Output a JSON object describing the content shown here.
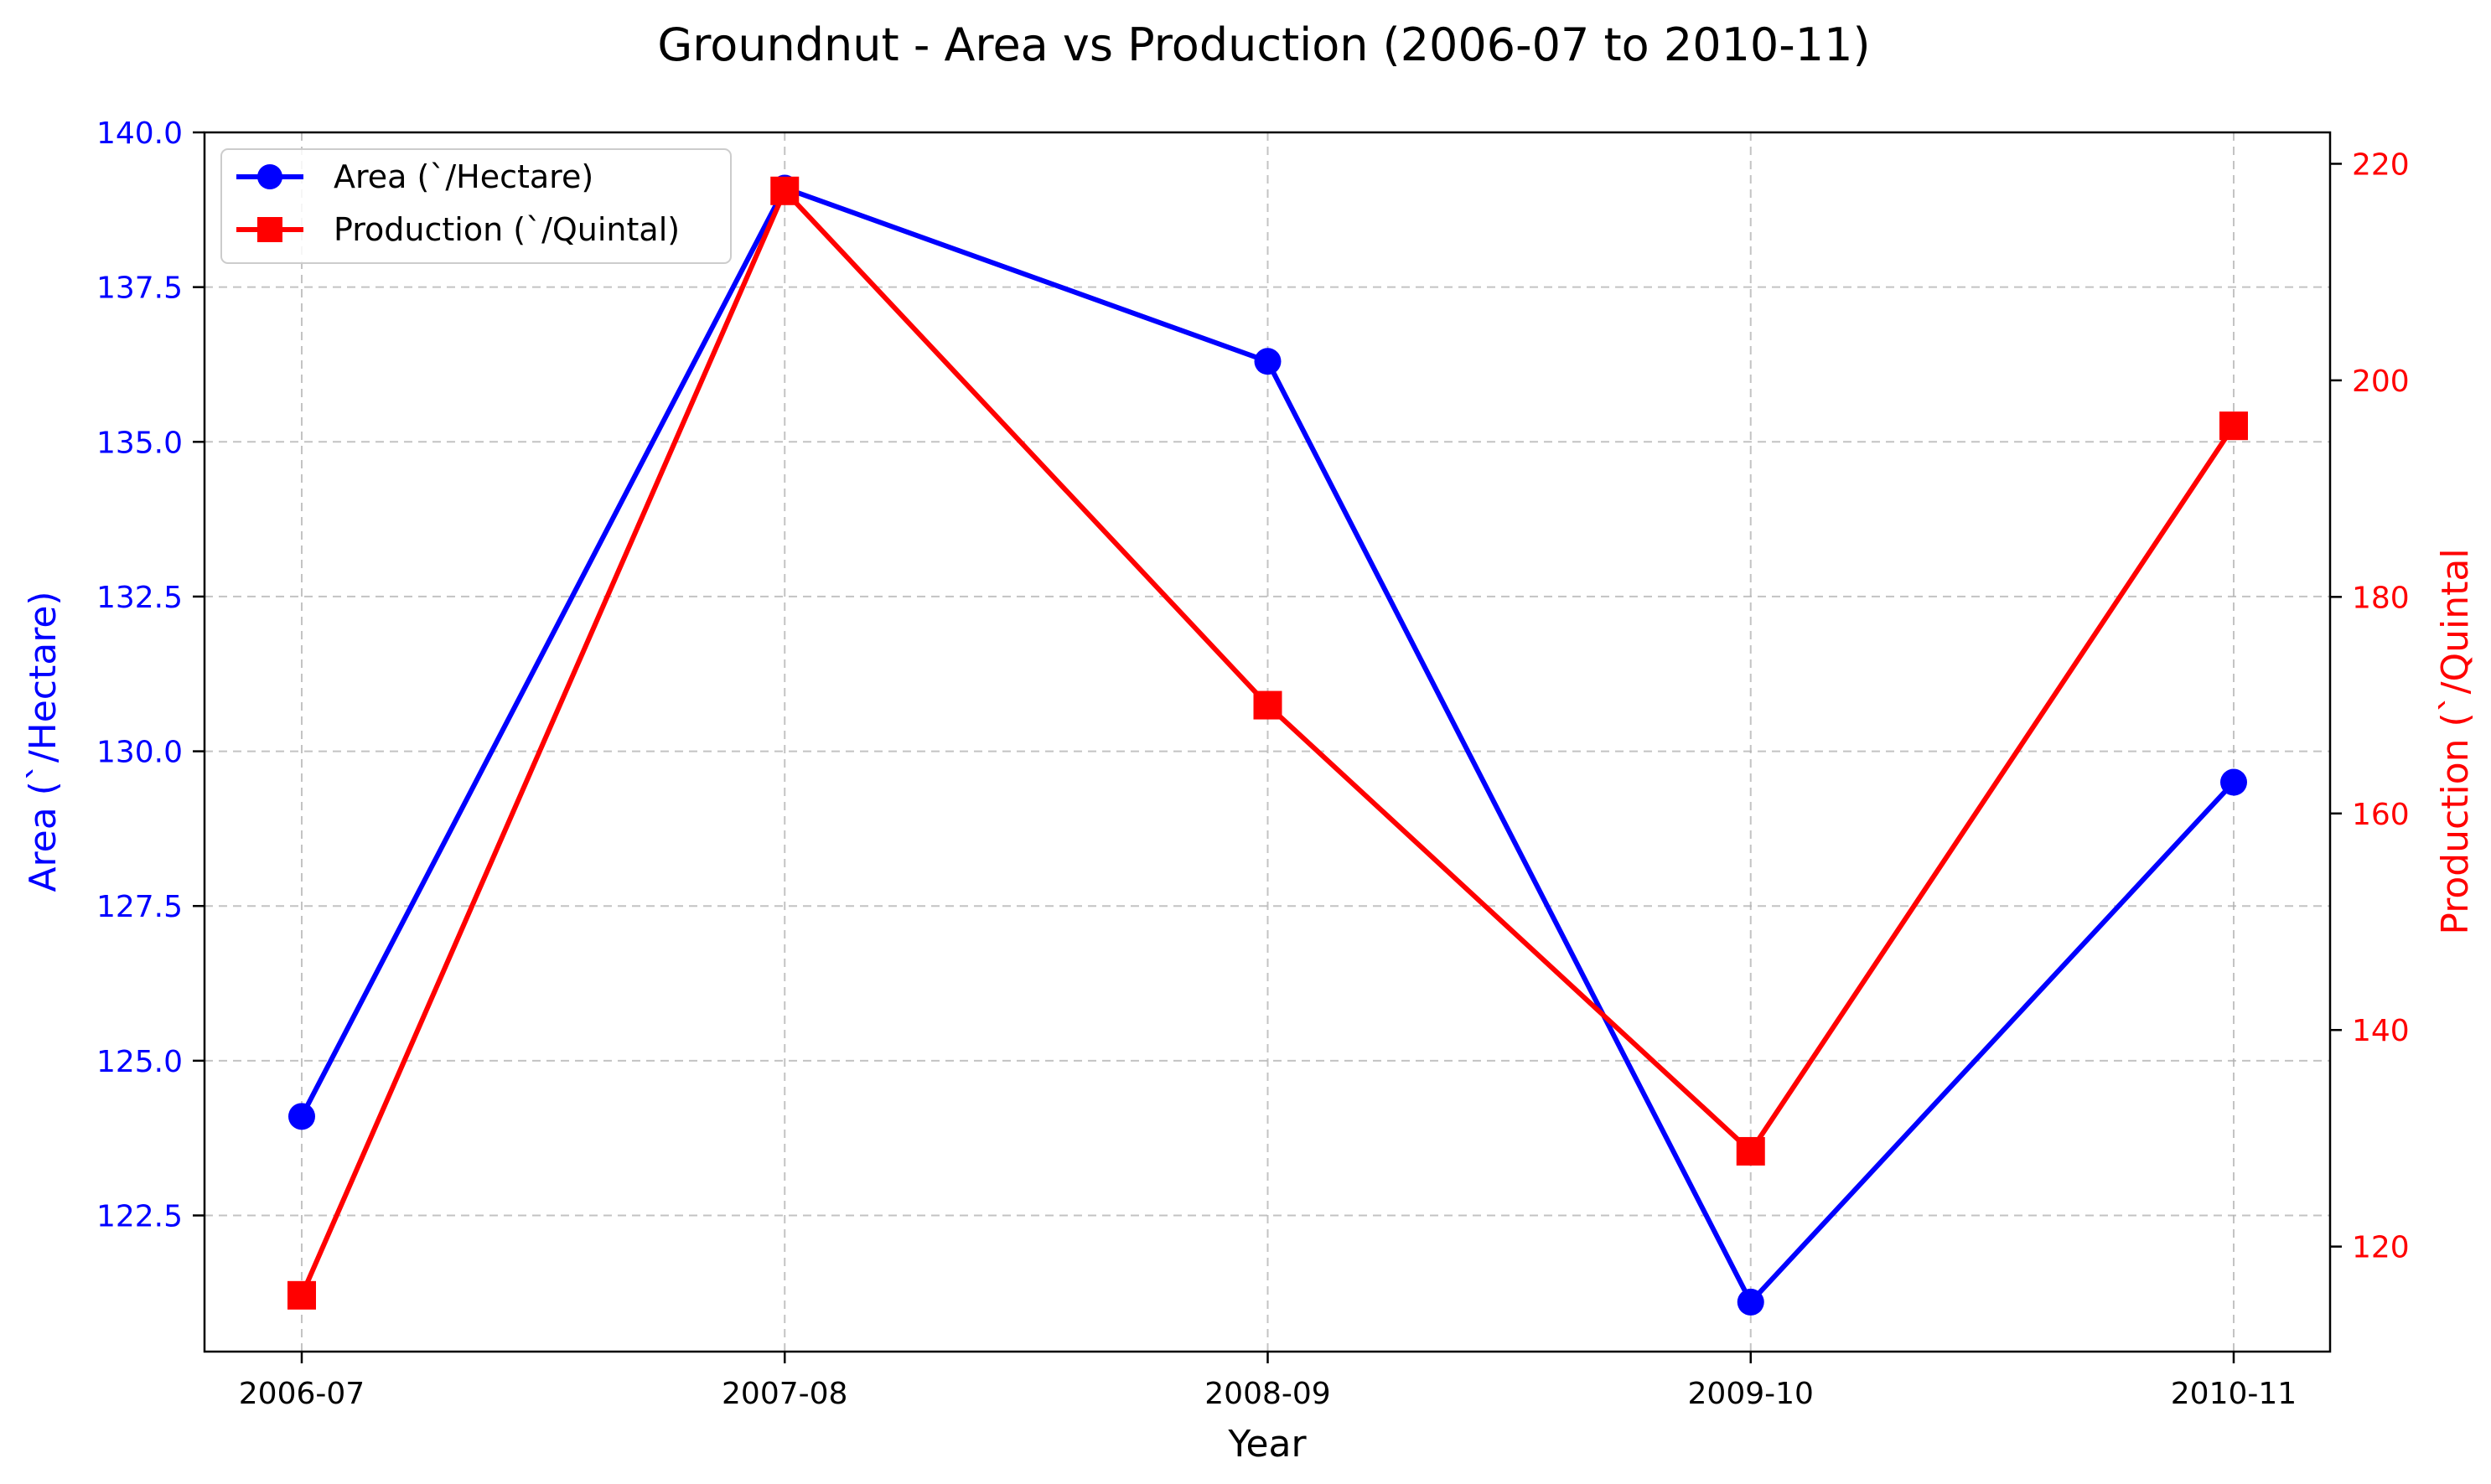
{
  "chart_data": {
    "type": "line",
    "title": "Groundnut - Area vs Production (2006-07 to 2010-11)",
    "xlabel": "Year",
    "categories": [
      "2006-07",
      "2007-08",
      "2008-09",
      "2009-10",
      "2010-11"
    ],
    "grid": true,
    "legend_position": "top-left",
    "left_axis": {
      "label": "Area (`/Hectare)",
      "color": "#0000ff",
      "ylim": [
        120.3,
        140.0
      ],
      "ticks": [
        "122.5",
        "125.0",
        "127.5",
        "130.0",
        "132.5",
        "135.0",
        "137.5",
        "140.0"
      ],
      "tick_values": [
        122.5,
        125.0,
        127.5,
        130.0,
        132.5,
        135.0,
        137.5,
        140.0
      ]
    },
    "right_axis": {
      "label": "Production (`/Quintal",
      "color": "#ff0000",
      "ylim": [
        110.3,
        222.9
      ],
      "ticks": [
        "120",
        "140",
        "160",
        "180",
        "200",
        "220"
      ],
      "tick_values": [
        120,
        140,
        160,
        180,
        200,
        220
      ]
    },
    "series": [
      {
        "name": "Area (`/Hectare)",
        "axis": "left",
        "color": "#0000ff",
        "marker": "circle",
        "values": [
          124.1,
          139.1,
          136.3,
          121.1,
          129.5
        ]
      },
      {
        "name": "Production (`/Quintal)",
        "axis": "right",
        "color": "#ff0000",
        "marker": "square",
        "values": [
          115.5,
          217.5,
          170.0,
          128.8,
          195.8
        ]
      }
    ]
  }
}
